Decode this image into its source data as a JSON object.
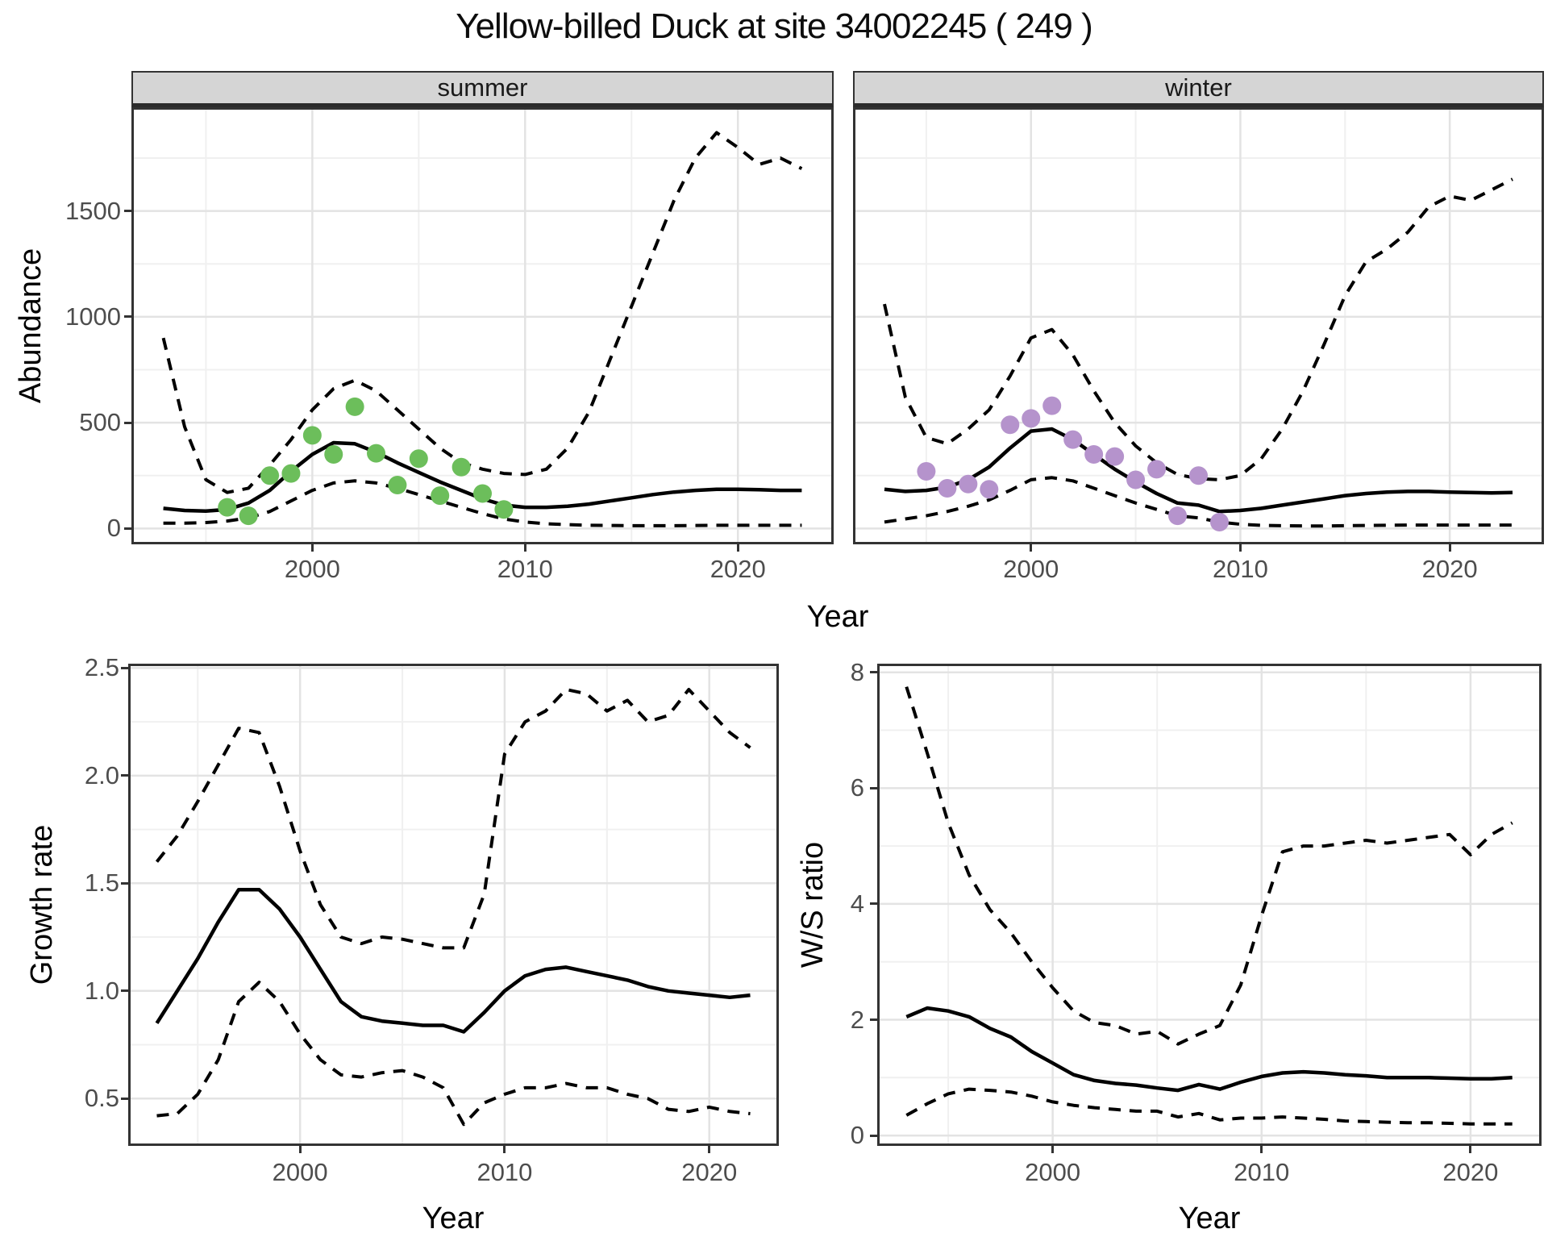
{
  "title": "Yellow-billed Duck at site 34002245 ( 249 )",
  "colors": {
    "summer_points": "#6cbe5b",
    "winter_points": "#b593cc",
    "line": "#000000",
    "strip_background": "#d5d5d5",
    "grid_major": "#e3e3e3",
    "grid_minor": "#f0f0f0",
    "panel_border": "#333333",
    "tick_text": "#4d4d4d"
  },
  "chart_data": [
    {
      "type": "line",
      "facet_label": "summer",
      "xlabel": "Year",
      "ylabel": "Abundance",
      "xlim": [
        1991.5,
        2024.5
      ],
      "ylim": [
        -75,
        1990
      ],
      "x_ticks": [
        2000,
        2010,
        2020
      ],
      "x_tick_labels": [
        "2000",
        "2010",
        "2020"
      ],
      "y_ticks": [
        0,
        500,
        1000,
        1500
      ],
      "y_tick_labels": [
        "0",
        "500",
        "1000",
        "1500"
      ],
      "grid": true,
      "legend": "none",
      "x": [
        1993,
        1994,
        1995,
        1996,
        1997,
        1998,
        1999,
        2000,
        2001,
        2002,
        2003,
        2004,
        2005,
        2006,
        2007,
        2008,
        2009,
        2010,
        2011,
        2012,
        2013,
        2014,
        2015,
        2016,
        2017,
        2018,
        2019,
        2020,
        2021,
        2022,
        2023
      ],
      "series": [
        {
          "name": "modelled_median",
          "style": "solid",
          "y": [
            95,
            85,
            82,
            90,
            120,
            180,
            270,
            350,
            405,
            400,
            360,
            310,
            265,
            220,
            180,
            140,
            110,
            100,
            100,
            105,
            115,
            130,
            145,
            160,
            172,
            180,
            185,
            185,
            183,
            180,
            180
          ]
        },
        {
          "name": "ci_upper",
          "style": "dashed",
          "y": [
            900,
            480,
            230,
            170,
            190,
            300,
            420,
            560,
            660,
            700,
            650,
            560,
            470,
            380,
            310,
            280,
            260,
            255,
            280,
            380,
            550,
            800,
            1050,
            1300,
            1550,
            1750,
            1870,
            1800,
            1720,
            1750,
            1700
          ]
        },
        {
          "name": "ci_lower",
          "style": "dashed",
          "y": [
            25,
            25,
            28,
            35,
            50,
            80,
            130,
            180,
            215,
            225,
            215,
            190,
            160,
            130,
            100,
            70,
            45,
            30,
            22,
            18,
            15,
            14,
            13,
            13,
            13,
            14,
            15,
            15,
            15,
            15,
            15
          ]
        },
        {
          "name": "observed_counts",
          "style": "points",
          "color": "#6cbe5b",
          "x": [
            1996,
            1997,
            1998,
            1999,
            2000,
            2001,
            2002,
            2003,
            2004,
            2005,
            2006,
            2007,
            2008,
            2009
          ],
          "y": [
            100,
            60,
            250,
            260,
            440,
            350,
            575,
            355,
            205,
            330,
            155,
            290,
            165,
            90
          ]
        }
      ]
    },
    {
      "type": "line",
      "facet_label": "winter",
      "xlabel": "Year",
      "ylabel": "",
      "xlim": [
        1991.5,
        2024.5
      ],
      "ylim": [
        -75,
        1990
      ],
      "x_ticks": [
        2000,
        2010,
        2020
      ],
      "x_tick_labels": [
        "2000",
        "2010",
        "2020"
      ],
      "y_ticks": [
        0,
        500,
        1000,
        1500
      ],
      "y_tick_labels": [
        "0",
        "500",
        "1000",
        "1500"
      ],
      "grid": true,
      "legend": "none",
      "x": [
        1993,
        1994,
        1995,
        1996,
        1997,
        1998,
        1999,
        2000,
        2001,
        2002,
        2003,
        2004,
        2005,
        2006,
        2007,
        2008,
        2009,
        2010,
        2011,
        2012,
        2013,
        2014,
        2015,
        2016,
        2017,
        2018,
        2019,
        2020,
        2021,
        2022,
        2023
      ],
      "series": [
        {
          "name": "modelled_median",
          "style": "solid",
          "y": [
            185,
            175,
            180,
            195,
            230,
            290,
            380,
            460,
            470,
            420,
            350,
            280,
            220,
            165,
            120,
            110,
            80,
            85,
            95,
            110,
            125,
            140,
            155,
            165,
            172,
            175,
            175,
            172,
            170,
            168,
            170
          ]
        },
        {
          "name": "ci_upper",
          "style": "dashed",
          "y": [
            1060,
            620,
            430,
            400,
            470,
            560,
            720,
            900,
            940,
            820,
            650,
            500,
            390,
            310,
            255,
            235,
            230,
            250,
            330,
            470,
            650,
            870,
            1100,
            1260,
            1320,
            1400,
            1520,
            1570,
            1550,
            1600,
            1650
          ]
        },
        {
          "name": "ci_lower",
          "style": "dashed",
          "y": [
            30,
            45,
            60,
            80,
            105,
            135,
            180,
            230,
            240,
            225,
            190,
            155,
            120,
            90,
            60,
            50,
            30,
            20,
            15,
            13,
            12,
            12,
            13,
            14,
            15,
            16,
            16,
            16,
            16,
            16,
            16
          ]
        },
        {
          "name": "observed_counts",
          "style": "points",
          "color": "#b593cc",
          "x": [
            1995,
            1996,
            1997,
            1998,
            1999,
            2000,
            2001,
            2002,
            2003,
            2004,
            2005,
            2006,
            2007,
            2008,
            2009
          ],
          "y": [
            270,
            190,
            210,
            185,
            490,
            520,
            580,
            420,
            350,
            340,
            230,
            280,
            60,
            250,
            30
          ]
        }
      ]
    },
    {
      "type": "line",
      "facet_label": "",
      "xlabel": "Year",
      "ylabel": "Growth rate",
      "xlim": [
        1991.6,
        2023.4
      ],
      "ylim": [
        0.28,
        2.52
      ],
      "x_ticks": [
        2000,
        2010,
        2020
      ],
      "x_tick_labels": [
        "2000",
        "2010",
        "2020"
      ],
      "y_ticks": [
        0.5,
        1.0,
        1.5,
        2.0,
        2.5
      ],
      "y_tick_labels": [
        "0.5",
        "1.0",
        "1.5",
        "2.0",
        "2.5"
      ],
      "grid": true,
      "legend": "none",
      "x": [
        1993,
        1994,
        1995,
        1996,
        1997,
        1998,
        1999,
        2000,
        2001,
        2002,
        2003,
        2004,
        2005,
        2006,
        2007,
        2008,
        2009,
        2010,
        2011,
        2012,
        2013,
        2014,
        2015,
        2016,
        2017,
        2018,
        2019,
        2020,
        2021,
        2022
      ],
      "series": [
        {
          "name": "growth_rate_median",
          "style": "solid",
          "y": [
            0.85,
            1.0,
            1.15,
            1.32,
            1.47,
            1.47,
            1.38,
            1.25,
            1.1,
            0.95,
            0.88,
            0.86,
            0.85,
            0.84,
            0.84,
            0.81,
            0.9,
            1.0,
            1.07,
            1.1,
            1.11,
            1.09,
            1.07,
            1.05,
            1.02,
            1.0,
            0.99,
            0.98,
            0.97,
            0.98
          ]
        },
        {
          "name": "ci_upper",
          "style": "dashed",
          "y": [
            1.6,
            1.72,
            1.88,
            2.05,
            2.22,
            2.2,
            1.95,
            1.65,
            1.4,
            1.25,
            1.22,
            1.25,
            1.24,
            1.22,
            1.2,
            1.2,
            1.45,
            2.1,
            2.25,
            2.3,
            2.4,
            2.38,
            2.3,
            2.35,
            2.25,
            2.28,
            2.4,
            2.3,
            2.2,
            2.13
          ]
        },
        {
          "name": "ci_lower",
          "style": "dashed",
          "y": [
            0.42,
            0.43,
            0.52,
            0.68,
            0.95,
            1.04,
            0.95,
            0.8,
            0.68,
            0.61,
            0.6,
            0.62,
            0.63,
            0.6,
            0.55,
            0.38,
            0.48,
            0.52,
            0.55,
            0.55,
            0.57,
            0.55,
            0.55,
            0.52,
            0.5,
            0.45,
            0.44,
            0.46,
            0.44,
            0.43
          ]
        }
      ]
    },
    {
      "type": "line",
      "facet_label": "",
      "xlabel": "Year",
      "ylabel": "W/S ratio",
      "xlim": [
        1991.6,
        2023.4
      ],
      "ylim": [
        -0.18,
        8.15
      ],
      "x_ticks": [
        2000,
        2010,
        2020
      ],
      "x_tick_labels": [
        "2000",
        "2010",
        "2020"
      ],
      "y_ticks": [
        0,
        2,
        4,
        6,
        8
      ],
      "y_tick_labels": [
        "0",
        "2",
        "4",
        "6",
        "8"
      ],
      "grid": true,
      "legend": "none",
      "x": [
        1993,
        1994,
        1995,
        1996,
        1997,
        1998,
        1999,
        2000,
        2001,
        2002,
        2003,
        2004,
        2005,
        2006,
        2007,
        2008,
        2009,
        2010,
        2011,
        2012,
        2013,
        2014,
        2015,
        2016,
        2017,
        2018,
        2019,
        2020,
        2021,
        2022
      ],
      "series": [
        {
          "name": "ws_ratio_median",
          "style": "solid",
          "y": [
            2.05,
            2.2,
            2.15,
            2.05,
            1.85,
            1.7,
            1.45,
            1.25,
            1.05,
            0.95,
            0.9,
            0.87,
            0.82,
            0.78,
            0.88,
            0.8,
            0.92,
            1.02,
            1.08,
            1.1,
            1.08,
            1.05,
            1.03,
            1.0,
            1.0,
            1.0,
            0.99,
            0.98,
            0.98,
            1.0
          ]
        },
        {
          "name": "ci_upper",
          "style": "dashed",
          "y": [
            7.75,
            6.6,
            5.4,
            4.5,
            3.9,
            3.5,
            3.0,
            2.55,
            2.15,
            1.95,
            1.9,
            1.75,
            1.8,
            1.58,
            1.75,
            1.9,
            2.6,
            3.8,
            4.9,
            5.0,
            5.0,
            5.05,
            5.1,
            5.05,
            5.1,
            5.15,
            5.2,
            4.85,
            5.2,
            5.4
          ]
        },
        {
          "name": "ci_lower",
          "style": "dashed",
          "y": [
            0.35,
            0.55,
            0.72,
            0.8,
            0.78,
            0.75,
            0.68,
            0.58,
            0.52,
            0.48,
            0.45,
            0.42,
            0.42,
            0.32,
            0.38,
            0.27,
            0.3,
            0.3,
            0.32,
            0.3,
            0.28,
            0.25,
            0.24,
            0.23,
            0.22,
            0.22,
            0.21,
            0.2,
            0.2,
            0.2
          ]
        }
      ]
    }
  ]
}
